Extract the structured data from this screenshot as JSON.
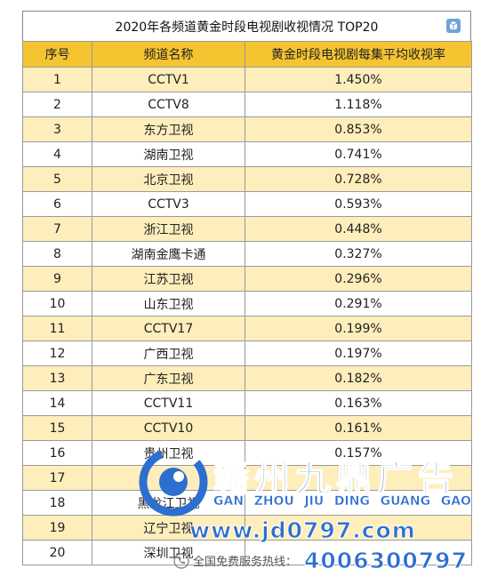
{
  "title": "2020年各频道黄金时段电视剧收视情况 TOP20",
  "headers": {
    "rank": "序号",
    "channel": "频道名称",
    "rating": "黄金时段电视剧每集平均收视率"
  },
  "rows": [
    {
      "rank": "1",
      "channel": "CCTV1",
      "rating": "1.450%"
    },
    {
      "rank": "2",
      "channel": "CCTV8",
      "rating": "1.118%"
    },
    {
      "rank": "3",
      "channel": "东方卫视",
      "rating": "0.853%"
    },
    {
      "rank": "4",
      "channel": "湖南卫视",
      "rating": "0.741%"
    },
    {
      "rank": "5",
      "channel": "北京卫视",
      "rating": "0.728%"
    },
    {
      "rank": "6",
      "channel": "CCTV3",
      "rating": "0.593%"
    },
    {
      "rank": "7",
      "channel": "浙江卫视",
      "rating": "0.448%"
    },
    {
      "rank": "8",
      "channel": "湖南金鹰卡通",
      "rating": "0.327%"
    },
    {
      "rank": "9",
      "channel": "江苏卫视",
      "rating": "0.296%"
    },
    {
      "rank": "10",
      "channel": "山东卫视",
      "rating": "0.291%"
    },
    {
      "rank": "11",
      "channel": "CCTV17",
      "rating": "0.199%"
    },
    {
      "rank": "12",
      "channel": "广西卫视",
      "rating": "0.197%"
    },
    {
      "rank": "13",
      "channel": "广东卫视",
      "rating": "0.182%"
    },
    {
      "rank": "14",
      "channel": "CCTV11",
      "rating": "0.163%"
    },
    {
      "rank": "15",
      "channel": "CCTV10",
      "rating": "0.161%"
    },
    {
      "rank": "16",
      "channel": "贵州卫视",
      "rating": "0.157%"
    },
    {
      "rank": "17",
      "channel": "",
      "rating": ""
    },
    {
      "rank": "18",
      "channel": "黑龙江卫视",
      "rating": ""
    },
    {
      "rank": "19",
      "channel": "辽宁卫视",
      "rating": ""
    },
    {
      "rank": "20",
      "channel": "深圳卫视",
      "rating": ""
    }
  ],
  "watermark": {
    "brand": "赣州九鼎广告",
    "pinyin": [
      "GAN",
      "ZHOU",
      "JIU",
      "DING",
      "GUANG",
      "GAO"
    ],
    "url": "www.jd0797.com",
    "hotline_label": "全国免费服务热线：",
    "hotline_number": "4006300797"
  },
  "colors": {
    "header_bg": "#f5c431",
    "odd_row_bg": "#fdeebc",
    "even_row_bg": "#ffffff",
    "watermark_blue": "#2d6fd0"
  },
  "icons": {
    "logo": "cube-logo-icon",
    "watermark_logo": "swirl-logo-icon",
    "phone": "phone-icon"
  }
}
